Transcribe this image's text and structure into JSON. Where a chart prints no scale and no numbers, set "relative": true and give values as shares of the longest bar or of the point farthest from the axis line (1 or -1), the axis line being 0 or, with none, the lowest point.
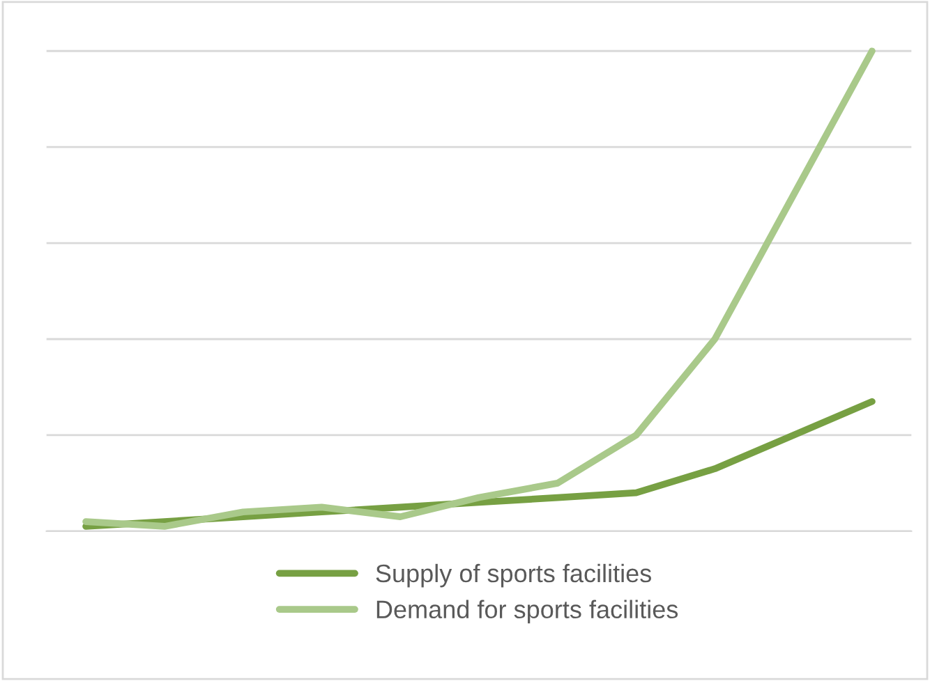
{
  "chart_data": {
    "type": "line",
    "relative": true,
    "categories": [
      null,
      null,
      null,
      null,
      null,
      null,
      null,
      null,
      null,
      null,
      null
    ],
    "series": [
      {
        "name": "Supply of sports facilities",
        "color": "#77a043",
        "values": [
          0.01,
          0.02,
          0.03,
          0.04,
          0.05,
          0.06,
          0.07,
          0.08,
          0.13,
          0.2,
          0.27
        ]
      },
      {
        "name": "Demand for sports facilities",
        "color": "#a9c98a",
        "values": [
          0.02,
          0.01,
          0.04,
          0.05,
          0.03,
          0.07,
          0.1,
          0.2,
          0.4,
          0.7,
          1
        ]
      }
    ],
    "grid": "y",
    "legend": "bottom",
    "marker": "none",
    "line_style": "solid"
  }
}
